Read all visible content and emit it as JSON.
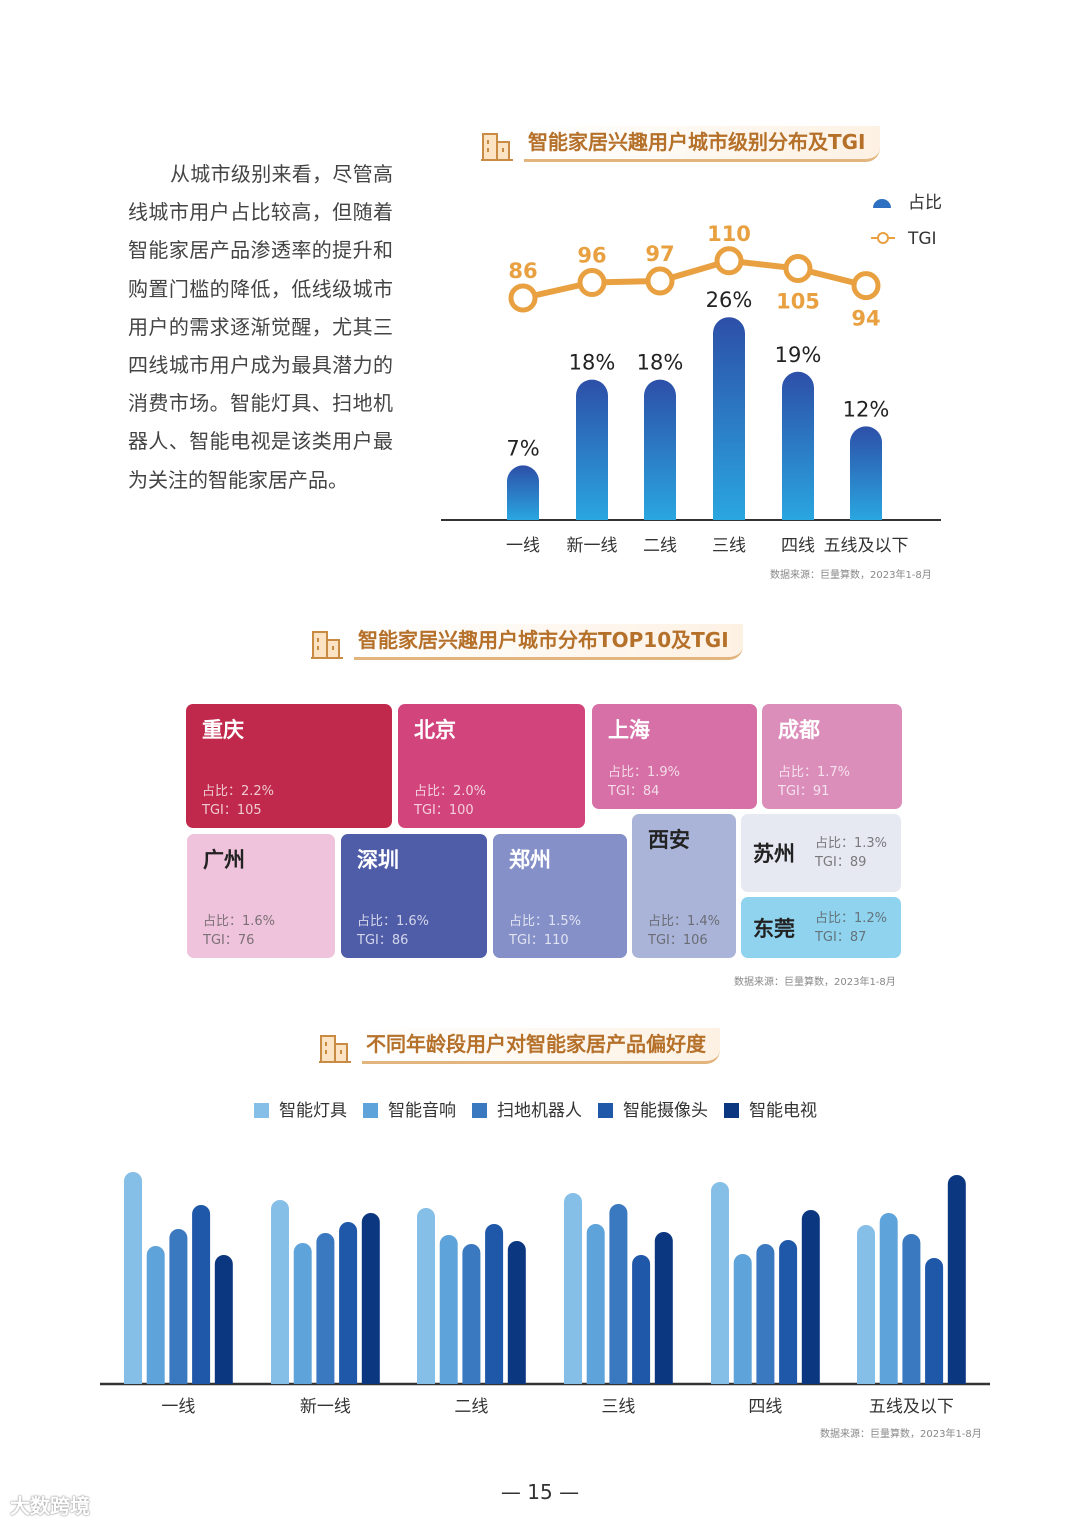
{
  "intro_text": "从城市级别来看，尽管高线城市用户占比较高，但随着智能家居产品渗透率的提升和购置门槛的降低，低线级城市用户的需求逐渐觉醒，尤其三四线城市用户成为最具潜力的消费市场。智能灯具、扫地机器人、智能电视是该类用户最为关注的智能家居产品。",
  "icons": {
    "section": "building-icon"
  },
  "colors": {
    "title": "#b5702a",
    "tgi_line": "#e8a040",
    "bar_top": "#2d4fa8",
    "bar_bottom": "#2aa6e0"
  },
  "chart_data": [
    {
      "type": "bar+line",
      "title": "智能家居兴趣用户城市级别分布及TGI",
      "categories": [
        "一线",
        "新一线",
        "二线",
        "三线",
        "四线",
        "五线及以下"
      ],
      "series": [
        {
          "name": "占比",
          "type": "bar",
          "values": [
            7,
            18,
            18,
            26,
            19,
            12
          ],
          "labels": [
            "7%",
            "18%",
            "18%",
            "26%",
            "19%",
            "12%"
          ]
        },
        {
          "name": "TGI",
          "type": "line",
          "values": [
            86,
            96,
            97,
            110,
            105,
            94
          ]
        }
      ],
      "legend": "top-right",
      "grid": false,
      "source": "数据来源：巨量算数，2023年1-8月"
    },
    {
      "type": "treemap",
      "title": "智能家居兴趣用户城市分布TOP10及TGI",
      "items": [
        {
          "city": "重庆",
          "share": "占比：2.2%",
          "tgi": "TGI：105",
          "color": "#c0294b",
          "dark": false
        },
        {
          "city": "北京",
          "share": "占比：2.0%",
          "tgi": "TGI：100",
          "color": "#d2447c",
          "dark": false
        },
        {
          "city": "上海",
          "share": "占比：1.9%",
          "tgi": "TGI：84",
          "color": "#d670a6",
          "dark": false
        },
        {
          "city": "成都",
          "share": "占比：1.7%",
          "tgi": "TGI：91",
          "color": "#dc8ebb",
          "dark": false
        },
        {
          "city": "广州",
          "share": "占比：1.6%",
          "tgi": "TGI：76",
          "color": "#efc3dc",
          "dark": true
        },
        {
          "city": "深圳",
          "share": "占比：1.6%",
          "tgi": "TGI：86",
          "color": "#4f5ca8",
          "dark": false
        },
        {
          "city": "郑州",
          "share": "占比：1.5%",
          "tgi": "TGI：110",
          "color": "#8590c8",
          "dark": false
        },
        {
          "city": "西安",
          "share": "占比：1.4%",
          "tgi": "TGI：106",
          "color": "#aab4d8",
          "dark": true
        },
        {
          "city": "苏州",
          "share": "占比：1.3%",
          "tgi": "TGI：89",
          "color": "#e6e8f2",
          "dark": true
        },
        {
          "city": "东莞",
          "share": "占比：1.2%",
          "tgi": "TGI：87",
          "color": "#8fd3ef",
          "dark": true
        }
      ],
      "source": "数据来源：巨量算数，2023年1-8月"
    },
    {
      "type": "bar",
      "title": "不同年龄段用户对智能家居产品偏好度",
      "categories": [
        "一线",
        "新一线",
        "二线",
        "三线",
        "四线",
        "五线及以下"
      ],
      "series": [
        {
          "name": "智能灯具",
          "color": "#85bfe8",
          "values": [
            212,
            184,
            176,
            191,
            202,
            159
          ]
        },
        {
          "name": "智能音响",
          "color": "#5fa3db",
          "values": [
            138,
            141,
            149,
            160,
            130,
            171
          ]
        },
        {
          "name": "扫地机器人",
          "color": "#3a79c0",
          "values": [
            155,
            151,
            140,
            180,
            140,
            150
          ]
        },
        {
          "name": "智能摄像头",
          "color": "#1f58a8",
          "values": [
            179,
            162,
            160,
            129,
            144,
            126
          ]
        },
        {
          "name": "智能电视",
          "color": "#0b3781",
          "values": [
            129,
            171,
            143,
            152,
            174,
            209
          ]
        }
      ],
      "legend": "top",
      "grid": false,
      "source": "数据来源：巨量算数，2023年1-8月"
    }
  ],
  "page_number": "— 15 —",
  "watermark": "大数跨境"
}
